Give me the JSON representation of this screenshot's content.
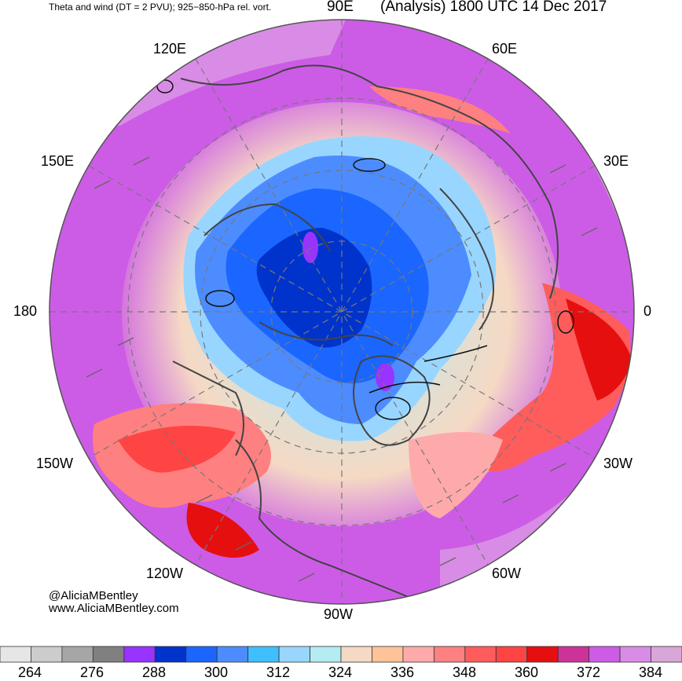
{
  "header": {
    "left": "Theta and wind (DT = 2 PVU); 925−850-hPa rel. vort.",
    "right": "(Analysis) 1800 UTC 14 Dec 2017"
  },
  "longitude_labels": {
    "e90": "90E",
    "e120": "120E",
    "e60": "60E",
    "e150": "150E",
    "e30": "30E",
    "d180": "180",
    "d0": "0",
    "w150": "150W",
    "w30": "30W",
    "w120": "120W",
    "w60": "60W",
    "w90": "90W"
  },
  "credits": {
    "handle": "@AliciaMBentley",
    "site": "www.AliciaMBentley.com"
  },
  "colorbar": {
    "colors": [
      "#e6e6e6",
      "#cccccc",
      "#a6a6a6",
      "#808080",
      "#9933ff",
      "#0033cc",
      "#1a66ff",
      "#4d8cff",
      "#40bfff",
      "#99d6ff",
      "#b3ecf2",
      "#f5d9c4",
      "#ffc299",
      "#ffaaaa",
      "#ff8080",
      "#ff5c5c",
      "#ff4444",
      "#e60f0f",
      "#cc3399",
      "#cc5ce6",
      "#d98ce6",
      "#d9a6d9"
    ],
    "labels": [
      "264",
      "276",
      "288",
      "300",
      "312",
      "324",
      "336",
      "348",
      "360",
      "372",
      "384"
    ]
  }
}
